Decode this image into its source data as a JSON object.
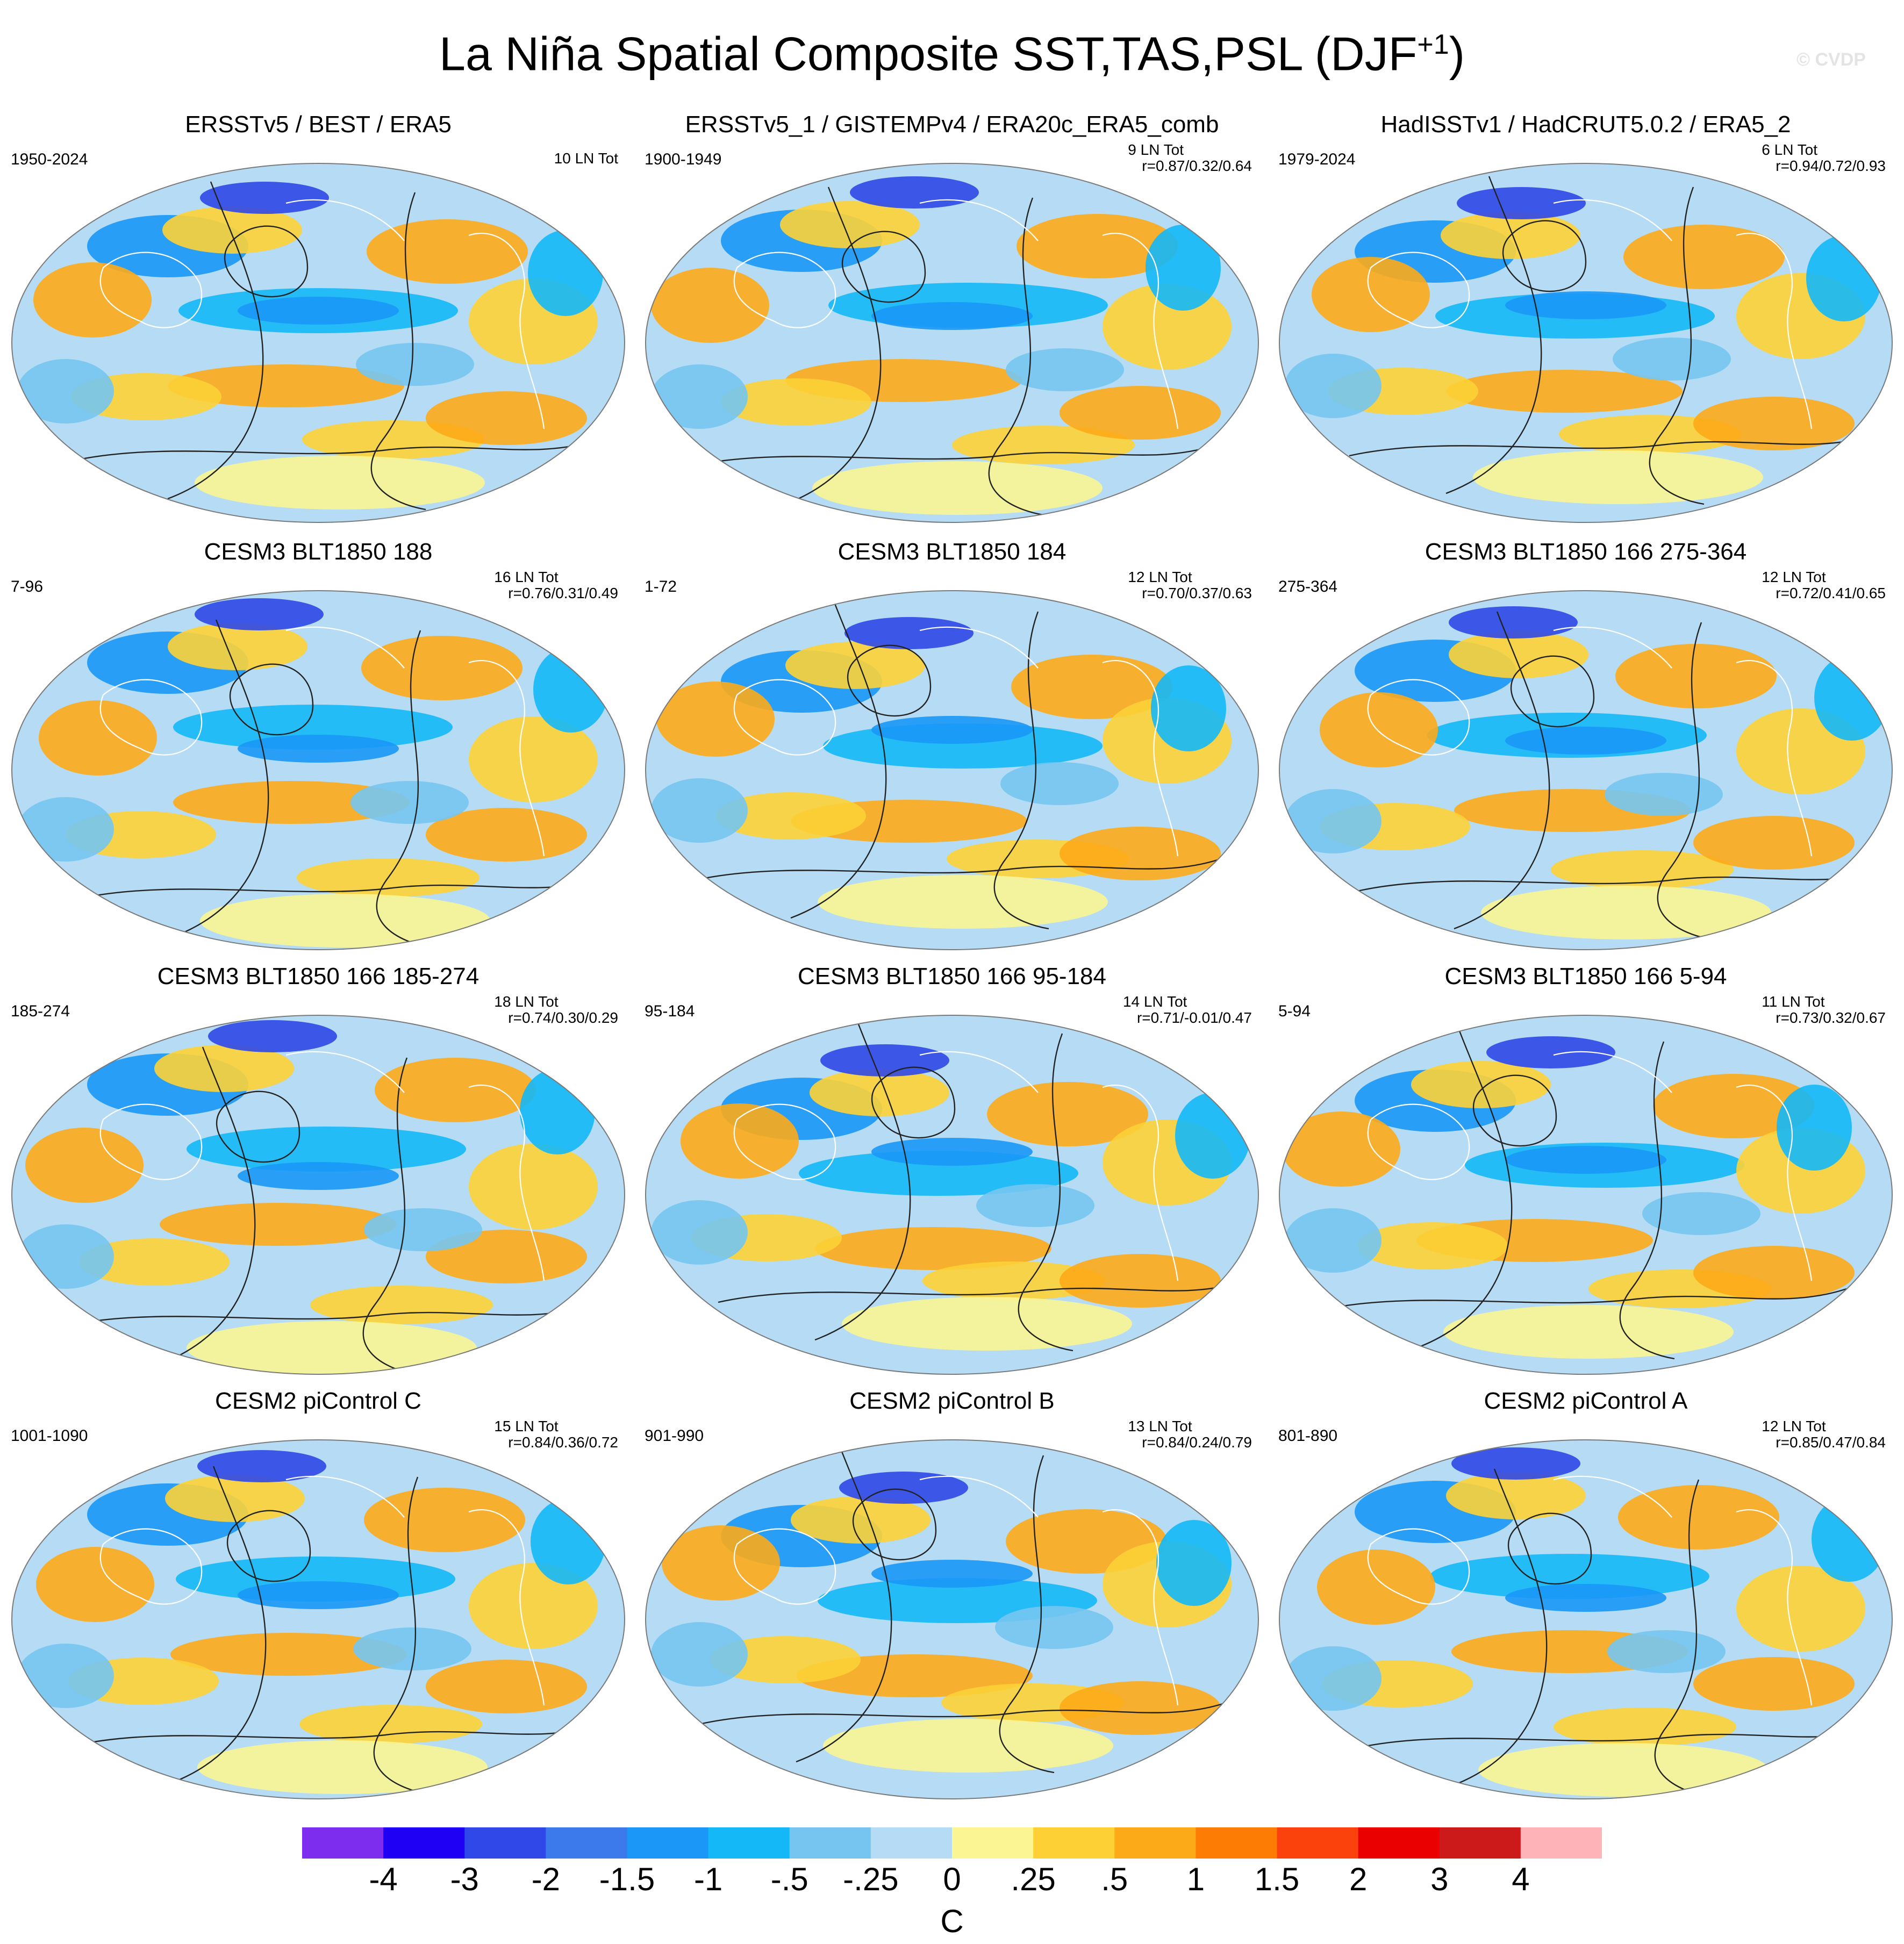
{
  "figure": {
    "title_main": "La Niña Spatial Composite SST,TAS,PSL (DJF",
    "title_sup": "+1",
    "title_end": ")",
    "watermark": "© CVDP",
    "units": "C"
  },
  "colors": {
    "ocean_background": "#b5dcf4",
    "map_outline": "#7a7a7a",
    "coast": "#ffffff",
    "contour": "#222222"
  },
  "panels": [
    {
      "title": "ERSSTv5 / BEST / ERA5",
      "period": "1950-2024",
      "events": "10 LN Tot",
      "corr": "",
      "ln_count": 10
    },
    {
      "title": "ERSSTv5_1 / GISTEMPv4 / ERA20c_ERA5_comb",
      "period": "1900-1949",
      "events": "9 LN Tot",
      "corr": "r=0.87/0.32/0.64",
      "ln_count": 9
    },
    {
      "title": "HadISSTv1 / HadCRUT5.0.2 / ERA5_2",
      "period": "1979-2024",
      "events": "6 LN Tot",
      "corr": "r=0.94/0.72/0.93",
      "ln_count": 6
    },
    {
      "title": "CESM3 BLT1850 188",
      "period": "7-96",
      "events": "16 LN Tot",
      "corr": "r=0.76/0.31/0.49",
      "ln_count": 16
    },
    {
      "title": "CESM3 BLT1850 184",
      "period": "1-72",
      "events": "12 LN Tot",
      "corr": "r=0.70/0.37/0.63",
      "ln_count": 12
    },
    {
      "title": "CESM3 BLT1850 166 275-364",
      "period": "275-364",
      "events": "12 LN Tot",
      "corr": "r=0.72/0.41/0.65",
      "ln_count": 12
    },
    {
      "title": "CESM3 BLT1850 166 185-274",
      "period": "185-274",
      "events": "18 LN Tot",
      "corr": "r=0.74/0.30/0.29",
      "ln_count": 18
    },
    {
      "title": "CESM3 BLT1850 166 95-184",
      "period": "95-184",
      "events": "14 LN Tot",
      "corr": "r=0.71/-0.01/0.47",
      "ln_count": 14
    },
    {
      "title": "CESM3 BLT1850 166 5-94",
      "period": "5-94",
      "events": "11 LN Tot",
      "corr": "r=0.73/0.32/0.67",
      "ln_count": 11
    },
    {
      "title": "CESM2 piControl C",
      "period": "1001-1090",
      "events": "15 LN Tot",
      "corr": "r=0.84/0.36/0.72",
      "ln_count": 15
    },
    {
      "title": "CESM2 piControl B",
      "period": "901-990",
      "events": "13 LN Tot",
      "corr": "r=0.84/0.24/0.79",
      "ln_count": 13
    },
    {
      "title": "CESM2 piControl A",
      "period": "801-890",
      "events": "12 LN Tot",
      "corr": "r=0.85/0.47/0.84",
      "ln_count": 12
    }
  ],
  "colorbar": {
    "colors": [
      "#7d2ded",
      "#1f00f5",
      "#2f48e7",
      "#3c79eb",
      "#1a97f7",
      "#14b8f7",
      "#76c5f1",
      "#b5dcf4",
      "#fbf593",
      "#fdd136",
      "#fdaa18",
      "#fd7d04",
      "#fc420c",
      "#ea0000",
      "#cc1a1a",
      "#fdb3b7"
    ],
    "labels": [
      "-4",
      "-3",
      "-2",
      "-1.5",
      "-1",
      "-.5",
      "-.25",
      "0",
      ".25",
      ".5",
      "1",
      "1.5",
      "2",
      "3",
      "4"
    ]
  }
}
